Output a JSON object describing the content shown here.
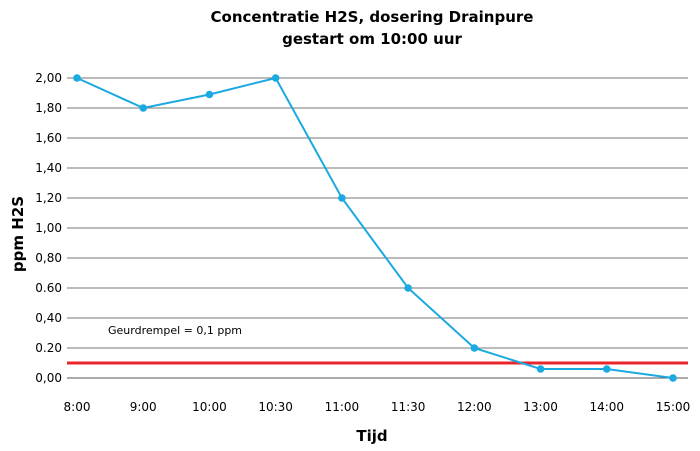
{
  "chart_data": {
    "type": "line",
    "title_line1": "Concentratie H2S, dosering Drainpure",
    "title_line2": "gestart om 10:00 uur",
    "xlabel": "Tijd",
    "ylabel": "ppm H2S",
    "categories": [
      "8:00",
      "9:00",
      "10:00",
      "10:30",
      "11:00",
      "11:30",
      "12:00",
      "13:00",
      "14:00",
      "15:00"
    ],
    "values": [
      2.0,
      1.8,
      1.89,
      2.0,
      1.2,
      0.6,
      0.2,
      0.06,
      0.06,
      0.0
    ],
    "y_ticks": [
      "0,00",
      "0.20",
      "0,40",
      "0.60",
      "0,80",
      "1,00",
      "1,20",
      "1,40",
      "1,60",
      "1,80",
      "2,00"
    ],
    "ylim": [
      0,
      2.0
    ],
    "grid": "horizontal",
    "line_color": "#1aa9e0",
    "threshold": {
      "value": 0.1,
      "label": "Geurdrempel = 0,1 ppm",
      "color": "#e8252b"
    }
  }
}
